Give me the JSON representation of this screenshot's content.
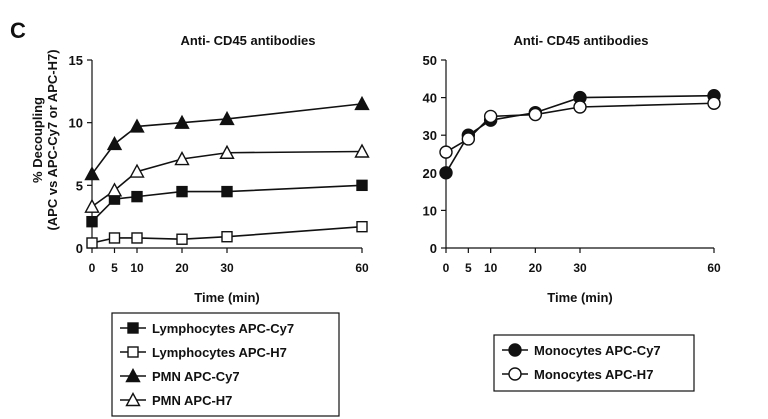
{
  "panel_label": "C",
  "chart_data": [
    {
      "type": "line",
      "title": "Anti- CD45 antibodies",
      "xlabel": "Time (min)",
      "ylabel_line1": "% Decoupling",
      "ylabel_line2": "(APC vs APC-Cy7 or APC-H7)",
      "x": [
        0,
        5,
        10,
        20,
        30,
        60
      ],
      "xticks": [
        "0",
        "5",
        "10",
        "20",
        "30",
        "60"
      ],
      "xlim": [
        0,
        60
      ],
      "ylim": [
        0,
        15
      ],
      "yticks": [
        "0",
        "5",
        "10",
        "15"
      ],
      "grid": false,
      "legend_position": "bottom",
      "series": [
        {
          "name": "Lymphocytes APC-Cy7",
          "marker": "square",
          "fill": "filled",
          "values": [
            2.1,
            3.9,
            4.1,
            4.5,
            4.5,
            5.0
          ]
        },
        {
          "name": "Lymphocytes APC-H7",
          "marker": "square",
          "fill": "open",
          "values": [
            0.4,
            0.8,
            0.8,
            0.7,
            0.9,
            1.7
          ]
        },
        {
          "name": "PMN APC-Cy7",
          "marker": "triangle",
          "fill": "filled",
          "values": [
            5.9,
            8.3,
            9.7,
            10.0,
            10.3,
            11.5
          ]
        },
        {
          "name": "PMN APC-H7",
          "marker": "triangle",
          "fill": "open",
          "values": [
            3.3,
            4.6,
            6.1,
            7.1,
            7.6,
            7.7
          ]
        }
      ]
    },
    {
      "type": "line",
      "title": "Anti- CD45 antibodies",
      "xlabel": "Time (min)",
      "ylabel_line1": "",
      "ylabel_line2": "",
      "x": [
        0,
        5,
        10,
        20,
        30,
        60
      ],
      "xticks": [
        "0",
        "5",
        "10",
        "20",
        "30",
        "60"
      ],
      "xlim": [
        0,
        60
      ],
      "ylim": [
        0,
        50
      ],
      "yticks": [
        "0",
        "10",
        "20",
        "30",
        "40",
        "50"
      ],
      "grid": false,
      "legend_position": "bottom",
      "series": [
        {
          "name": "Monocytes APC-Cy7",
          "marker": "circle",
          "fill": "filled",
          "values": [
            20,
            30,
            34,
            36,
            40,
            40.5
          ]
        },
        {
          "name": "Monocytes APC-H7",
          "marker": "circle",
          "fill": "open",
          "values": [
            25.5,
            29,
            35,
            35.5,
            37.5,
            38.5
          ]
        }
      ]
    }
  ]
}
